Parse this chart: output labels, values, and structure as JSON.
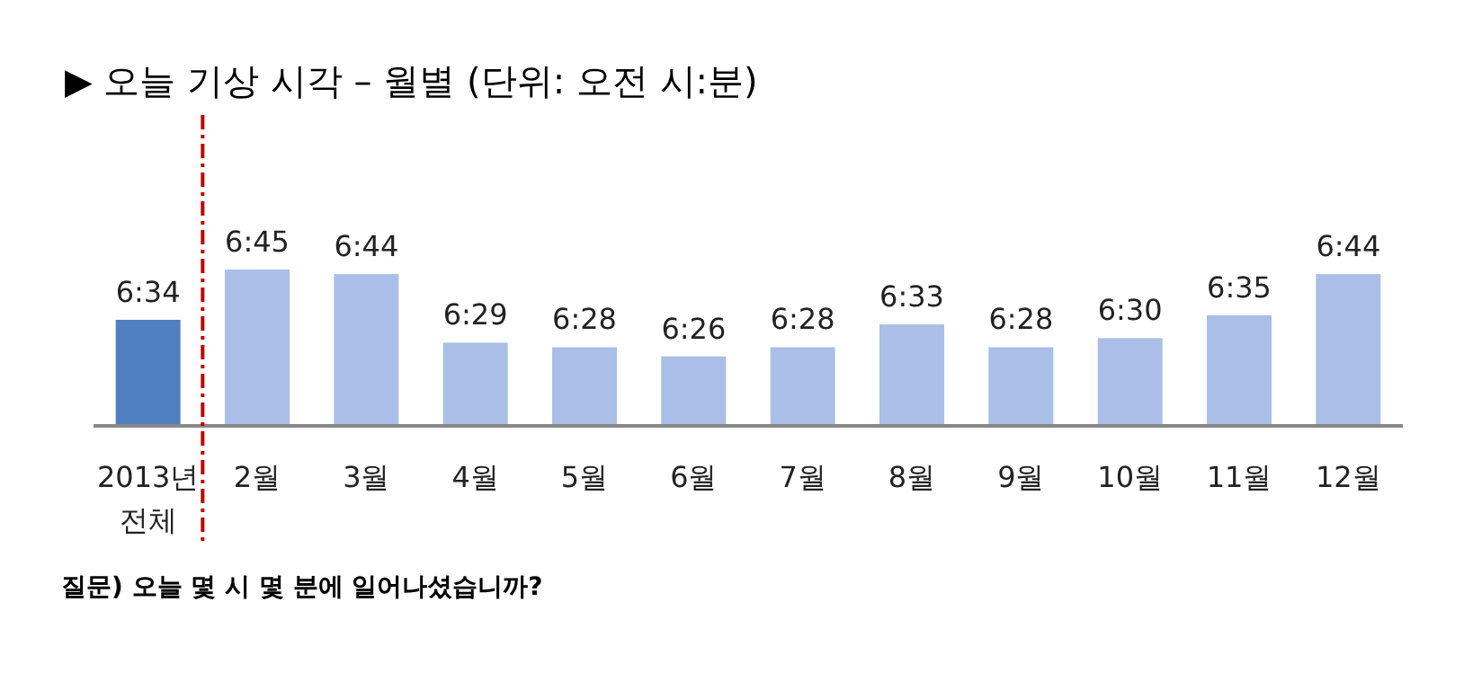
{
  "chart_data": {
    "type": "bar",
    "title": "▶ 오늘 기상 시각 – 월별 (단위: 오전 시:분)",
    "categories": [
      "2013년\n전체",
      "2월",
      "3월",
      "4월",
      "5월",
      "6월",
      "7월",
      "8월",
      "9월",
      "10월",
      "11월",
      "12월"
    ],
    "values": [
      6.5667,
      6.75,
      6.7333,
      6.4833,
      6.4667,
      6.4333,
      6.4667,
      6.55,
      6.4667,
      6.5,
      6.5833,
      6.7333
    ],
    "value_labels": [
      "6:34",
      "6:45",
      "6:44",
      "6:29",
      "6:28",
      "6:26",
      "6:28",
      "6:33",
      "6:28",
      "6:30",
      "6:35",
      "6:44"
    ],
    "ylim": [
      6.18,
      6.75
    ],
    "colors": [
      "#4f7fbf",
      "#a9bfe8",
      "#a9bfe8",
      "#a9bfe8",
      "#a9bfe8",
      "#a9bfe8",
      "#a9bfe8",
      "#a9bfe8",
      "#a9bfe8",
      "#a9bfe8",
      "#a9bfe8",
      "#a9bfe8"
    ],
    "annotations": [
      "질문) 오늘 몇 시 몇 분에 일어나셨습니까?"
    ]
  }
}
